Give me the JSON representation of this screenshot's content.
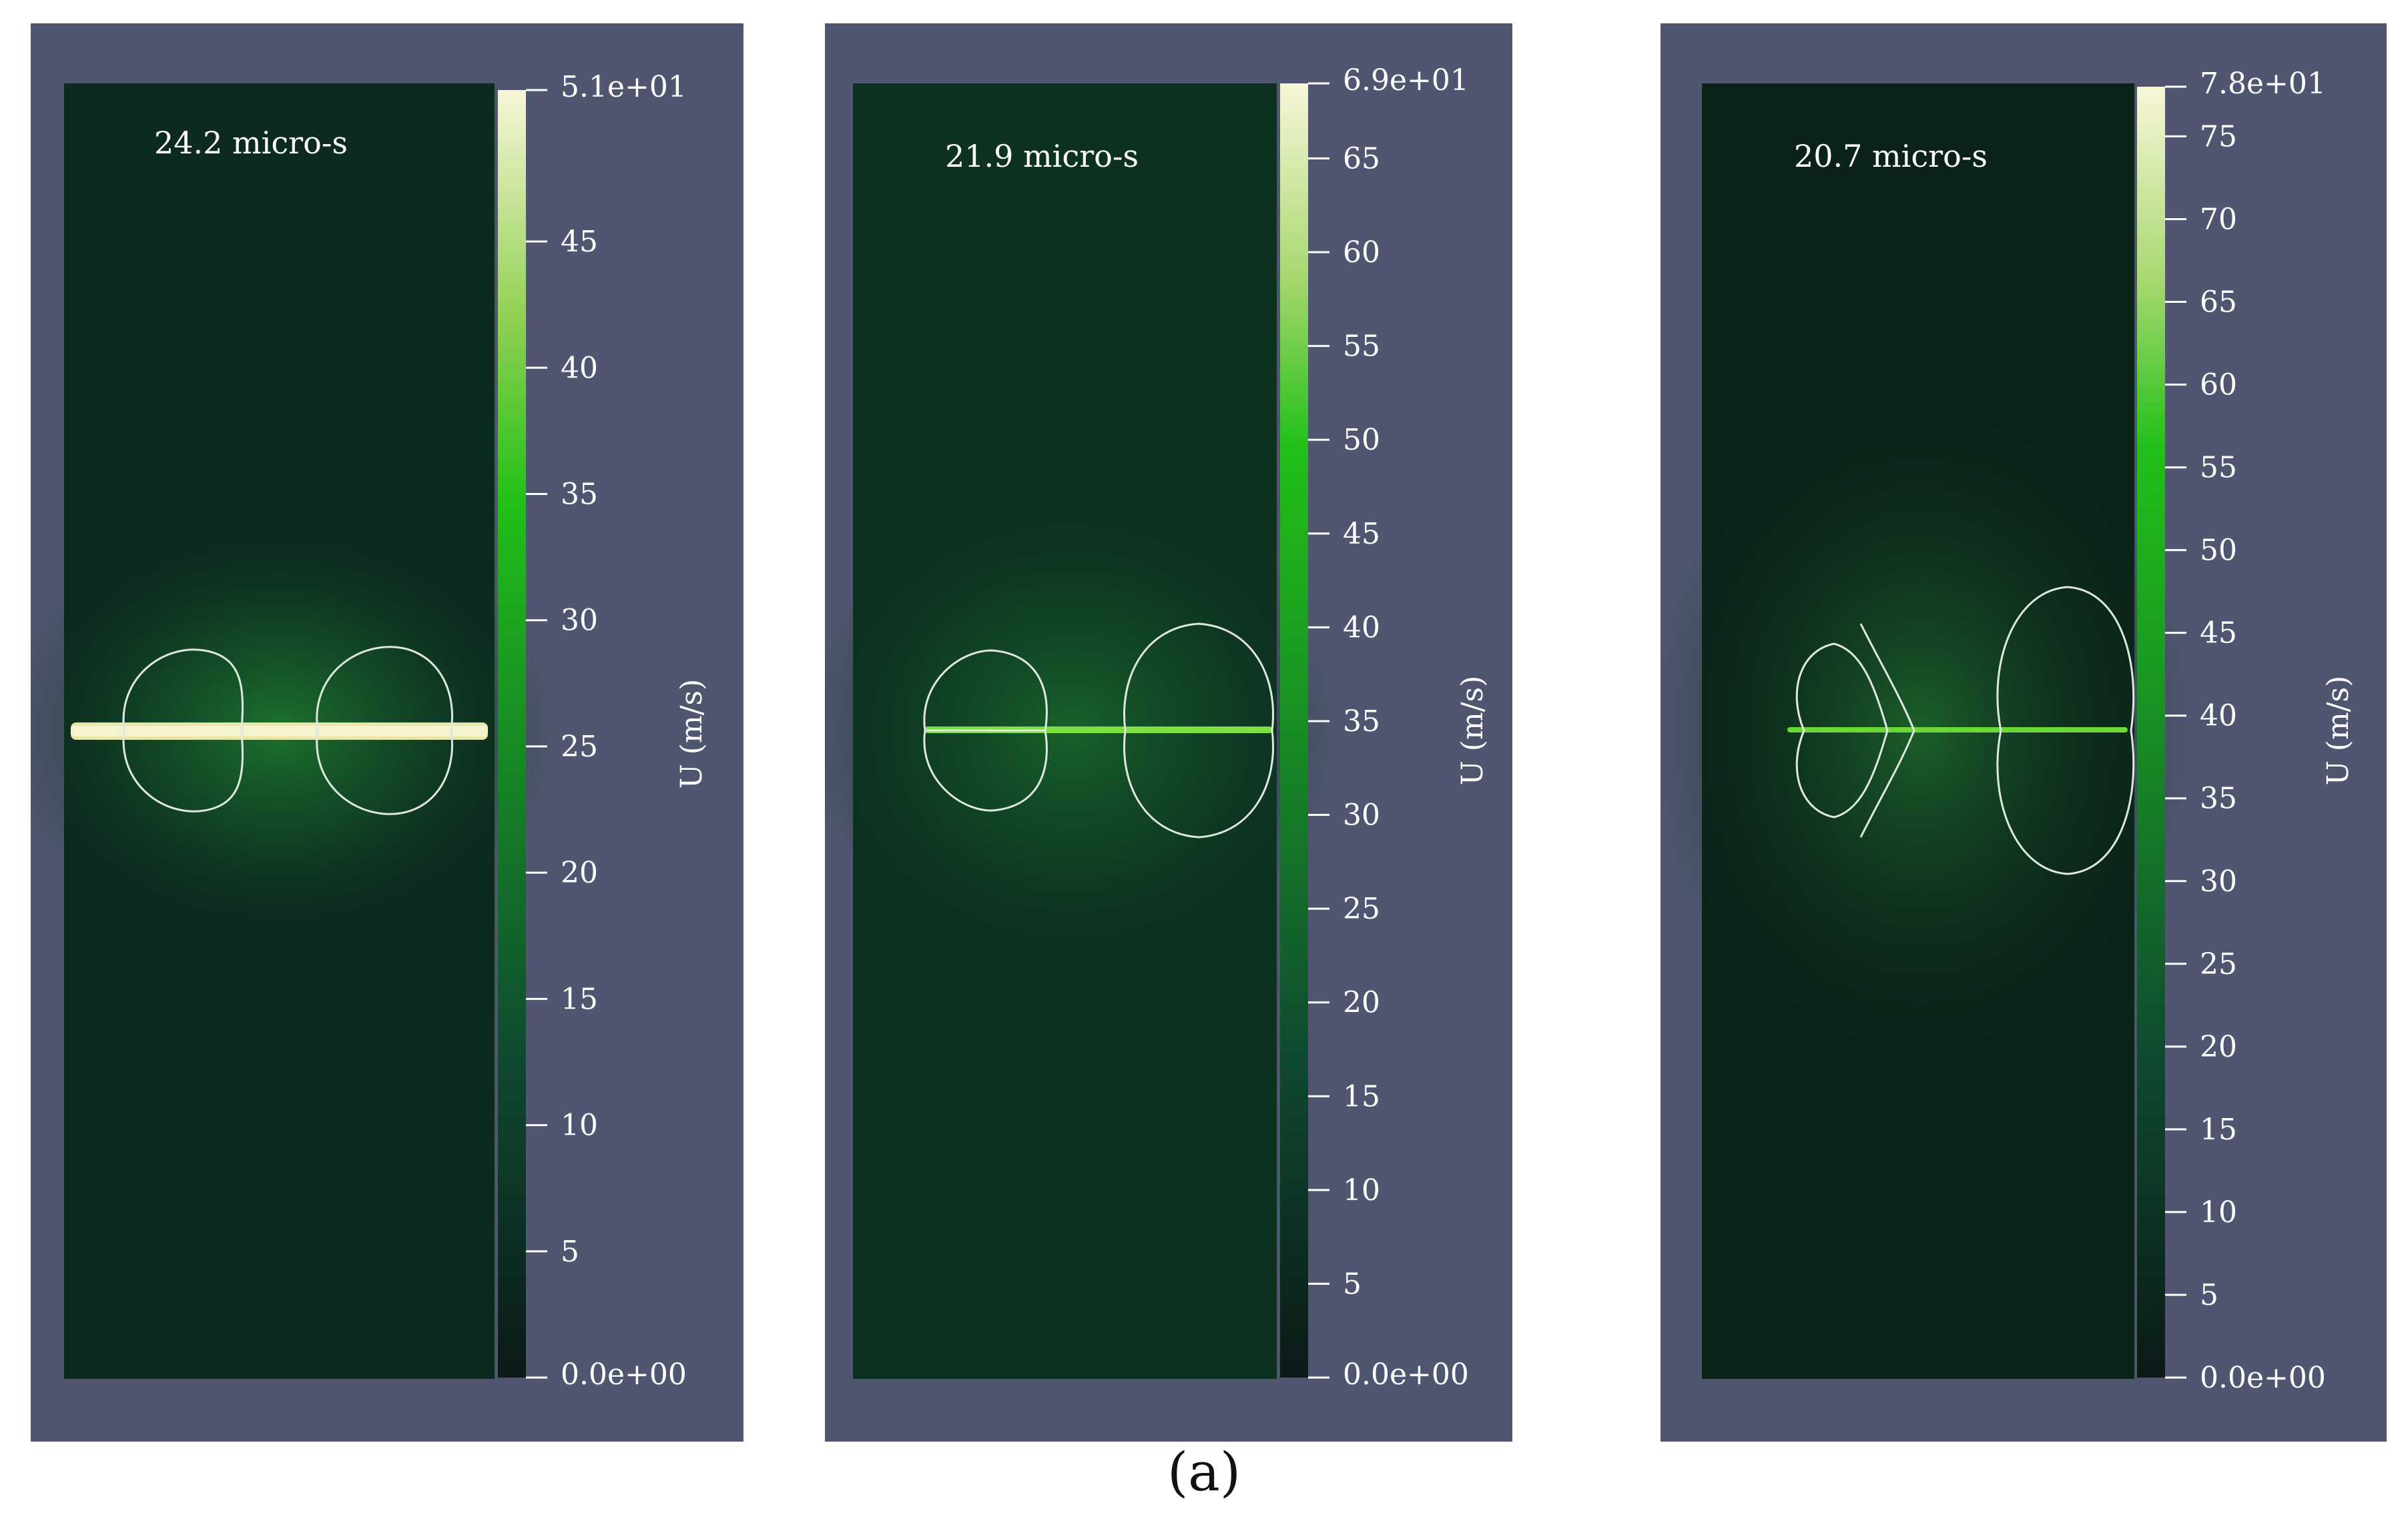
{
  "figure_label": "(a)",
  "colors": {
    "background": "#505670",
    "field_dark": "#0b1c18",
    "field_mid": "#0f3a22",
    "accent_green": "#22b818",
    "colorbar_top": "#f7f5d6",
    "contour": "#dfe8e0"
  },
  "panels": [
    {
      "time_label": "24.2 micro-s",
      "colorbar": {
        "title": "U (m/s)",
        "min": 0,
        "max": 51,
        "top_label": "5.1e+01",
        "bottom_label": "0.0e+00",
        "ticks": [
          "45",
          "40",
          "35",
          "30",
          "25",
          "20",
          "15",
          "10",
          "5"
        ]
      }
    },
    {
      "time_label": "21.9 micro-s",
      "colorbar": {
        "title": "U (m/s)",
        "min": 0,
        "max": 69,
        "top_label": "6.9e+01",
        "bottom_label": "0.0e+00",
        "ticks": [
          "65",
          "60",
          "55",
          "50",
          "45",
          "40",
          "35",
          "30",
          "25",
          "20",
          "15",
          "10",
          "5"
        ]
      }
    },
    {
      "time_label": "20.7 micro-s",
      "colorbar": {
        "title": "U (m/s)",
        "min": 0,
        "max": 78,
        "top_label": "7.8e+01",
        "bottom_label": "0.0e+00",
        "ticks": [
          "75",
          "70",
          "65",
          "60",
          "55",
          "50",
          "45",
          "40",
          "35",
          "30",
          "25",
          "20",
          "15",
          "10",
          "5"
        ]
      }
    }
  ]
}
